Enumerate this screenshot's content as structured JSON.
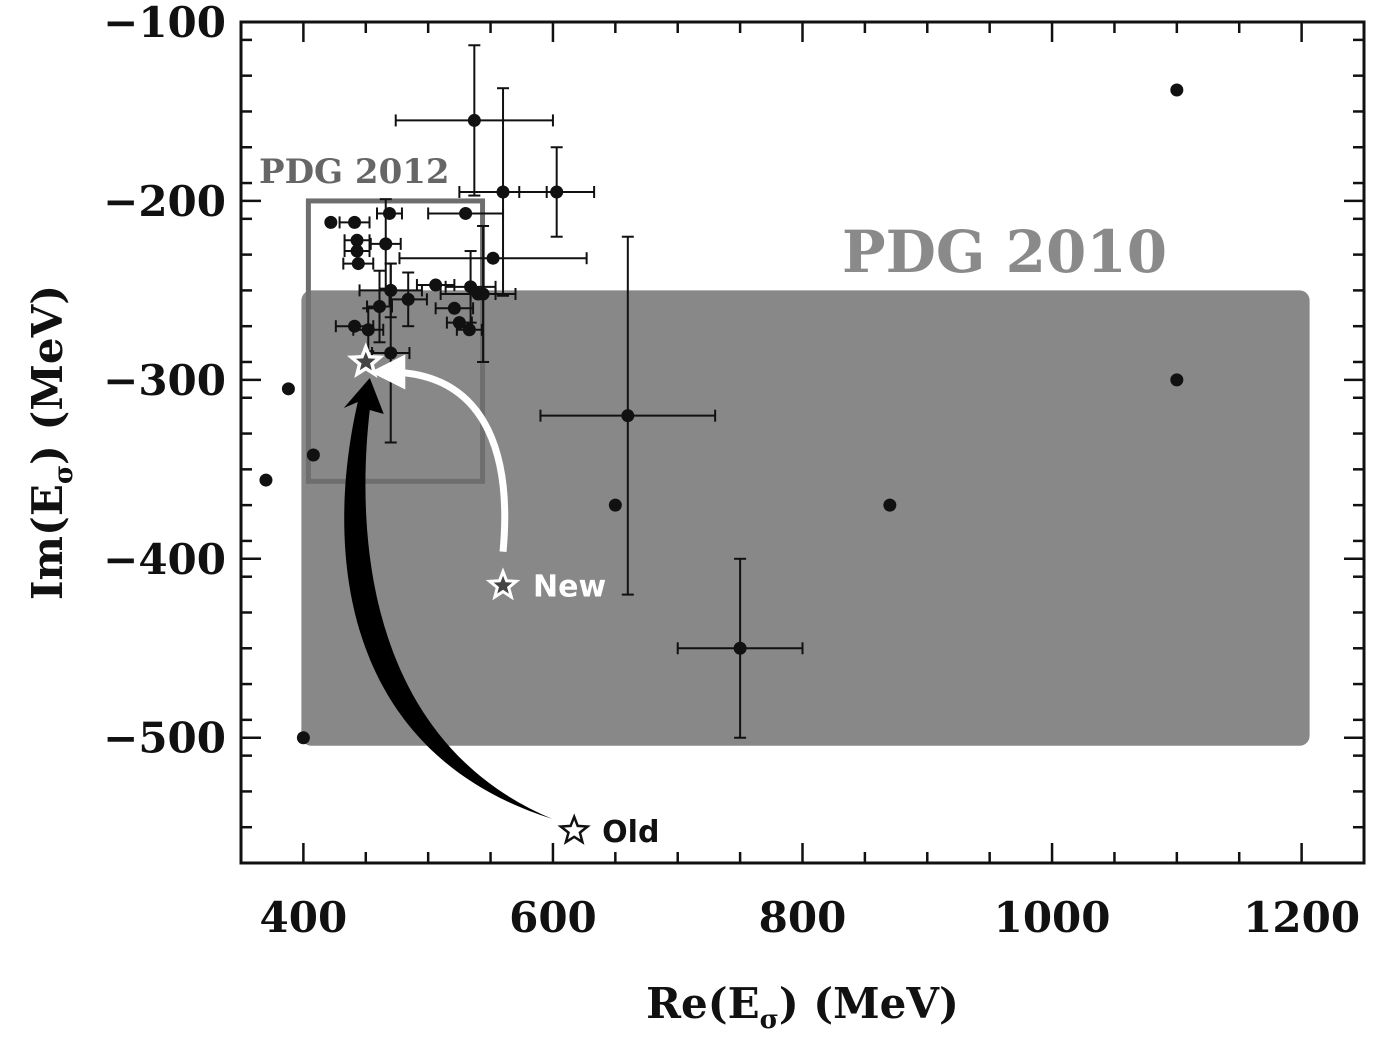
{
  "chart_data": {
    "type": "scatter",
    "title": "",
    "xlabel_main": "Re(E",
    "xlabel_sub": "σ",
    "xlabel_tail": ")  (MeV)",
    "ylabel_main": "Im(E",
    "ylabel_sub": "σ",
    "ylabel_tail": ")  (MeV)",
    "xlim": [
      350,
      1250
    ],
    "ylim": [
      -570,
      -100
    ],
    "xticks": [
      400,
      600,
      800,
      1000,
      1200
    ],
    "yticks": [
      -100,
      -200,
      -300,
      -400,
      -500
    ],
    "xtick_labels": [
      "400",
      "600",
      "800",
      "1000",
      "1200"
    ],
    "ytick_labels": [
      "−100",
      "−200",
      "−300",
      "−400",
      "−500"
    ],
    "regions": [
      {
        "name": "PDG 2010",
        "x": [
          400,
          1200
        ],
        "y": [
          -500,
          -250
        ],
        "color": "#888888"
      },
      {
        "name": "PDG 2012",
        "x": [
          400,
          550
        ],
        "y": [
          -350,
          -200
        ],
        "color": "#6e6e6e"
      }
    ],
    "points": [
      {
        "x": 370,
        "y": -356
      },
      {
        "x": 388,
        "y": -305
      },
      {
        "x": 400,
        "y": -500
      },
      {
        "x": 408,
        "y": -342
      },
      {
        "x": 422,
        "y": -212
      },
      {
        "x": 441,
        "y": -212,
        "xerr": 12
      },
      {
        "x": 441,
        "y": -270,
        "xerr": 15
      },
      {
        "x": 443,
        "y": -222,
        "xerr": 10
      },
      {
        "x": 443,
        "y": -228,
        "xerr": 10
      },
      {
        "x": 444,
        "y": -235,
        "xerr": 12
      },
      {
        "x": 452,
        "y": -272,
        "xerr": 12,
        "yerr": 12
      },
      {
        "x": 461,
        "y": -259,
        "xerr": 10,
        "yerr": 20
      },
      {
        "x": 466,
        "y": -224,
        "xerr": 12,
        "yerr": 25
      },
      {
        "x": 469,
        "y": -207,
        "xerr": 10
      },
      {
        "x": 470,
        "y": -250,
        "xerr": 25,
        "yerr": 15
      },
      {
        "x": 470,
        "y": -285,
        "xerr": 15,
        "yerr": 50
      },
      {
        "x": 484,
        "y": -255,
        "xerr": 15,
        "yerr": 15
      },
      {
        "x": 506,
        "y": -247,
        "xerr": 15
      },
      {
        "x": 521,
        "y": -260,
        "xerr": 15
      },
      {
        "x": 525,
        "y": -268,
        "xerr": 10
      },
      {
        "x": 530,
        "y": -207,
        "xerr": 30
      },
      {
        "x": 533,
        "y": -272,
        "xerr": 10
      },
      {
        "x": 534,
        "y": -248,
        "xerr": 20,
        "yerr": 20
      },
      {
        "x": 537,
        "y": -155,
        "xerr": 63,
        "yerr": 42
      },
      {
        "x": 540,
        "y": -252,
        "xerr": 30
      },
      {
        "x": 544,
        "y": -252,
        "xerr": 10,
        "yerr": 38
      },
      {
        "x": 552,
        "y": -232,
        "xerr": 75
      },
      {
        "x": 560,
        "y": -195,
        "xerr": 35,
        "yerr": 58
      },
      {
        "x": 603,
        "y": -195,
        "xerr": 30,
        "yerr": 25
      },
      {
        "x": 650,
        "y": -370
      },
      {
        "x": 660,
        "y": -320,
        "xerr": 70,
        "yerr": 100
      },
      {
        "x": 750,
        "y": -450,
        "xerr": 50,
        "yerr": 50
      },
      {
        "x": 870,
        "y": -370
      },
      {
        "x": 1100,
        "y": -138
      },
      {
        "x": 1100,
        "y": -300
      }
    ],
    "markers": [
      {
        "name": "New",
        "label": "New",
        "x": 560,
        "y": -415
      },
      {
        "name": "Old",
        "label": "Old",
        "x": 617,
        "y": -552
      },
      {
        "name": "Result",
        "label": "",
        "x": 450,
        "y": -290
      }
    ],
    "colors": {
      "pdg2010": "#888888",
      "pdg2012_outline": "#6e6e6e",
      "pdg2012_label": "#666666",
      "pdg2010_label": "#8a8a8a",
      "points": "#111111",
      "new_arrow": "#ffffff",
      "old_arrow": "#000000"
    }
  }
}
